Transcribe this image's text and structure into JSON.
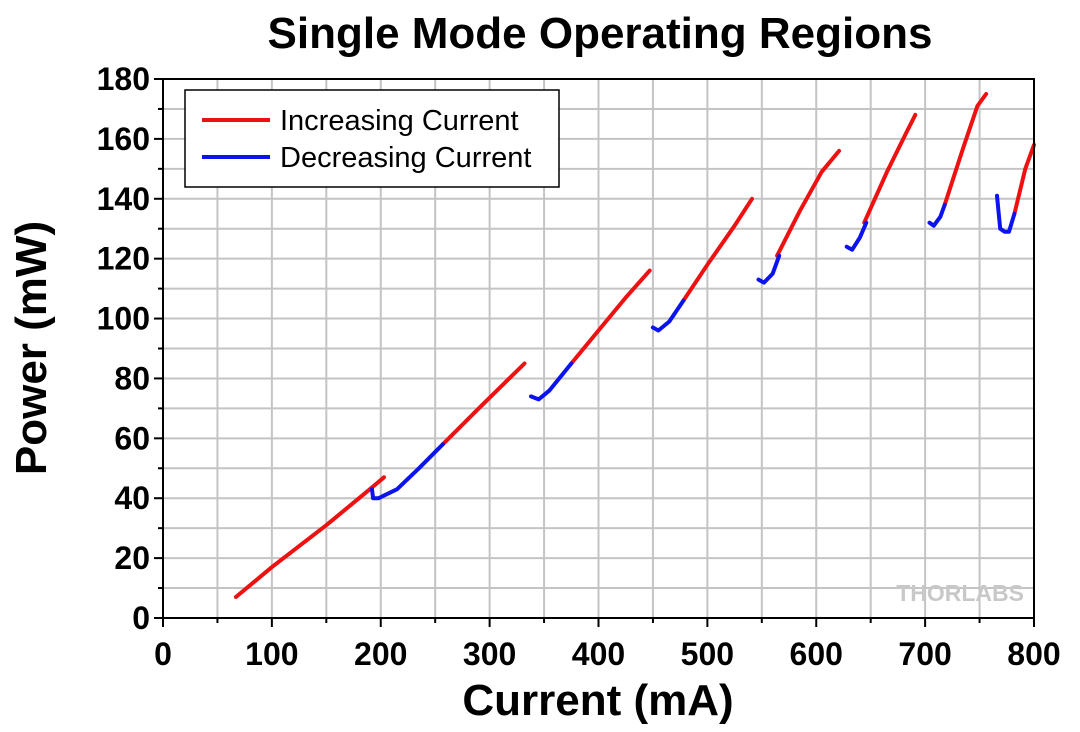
{
  "chart_data": {
    "type": "line",
    "title": "Single Mode Operating Regions",
    "xlabel": "Current (mA)",
    "ylabel": "Power (mW)",
    "xlim": [
      0,
      800
    ],
    "ylim": [
      0,
      180
    ],
    "x_ticks": [
      "0",
      "100",
      "200",
      "300",
      "400",
      "500",
      "600",
      "700",
      "800"
    ],
    "y_ticks": [
      "0",
      "20",
      "40",
      "60",
      "80",
      "100",
      "120",
      "140",
      "160",
      "180"
    ],
    "grid": true,
    "legend_position": "top-left",
    "watermark": "THORLABS",
    "series": [
      {
        "name": "Increasing Current",
        "color": "#ee1111",
        "segments": [
          [
            [
              67,
              7
            ],
            [
              100,
              17
            ],
            [
              150,
              31
            ],
            [
              190,
              43
            ],
            [
              203,
              47
            ]
          ],
          [
            [
              257,
              58
            ],
            [
              290,
              70
            ],
            [
              332,
              85
            ]
          ],
          [
            [
              375,
              85
            ],
            [
              400,
              96
            ],
            [
              425,
              107
            ],
            [
              447,
              116
            ]
          ],
          [
            [
              478,
              106
            ],
            [
              500,
              118
            ],
            [
              525,
              131
            ],
            [
              541,
              140
            ]
          ],
          [
            [
              564,
              121
            ],
            [
              585,
              136
            ],
            [
              605,
              149
            ],
            [
              621,
              156
            ]
          ],
          [
            [
              644,
              132
            ],
            [
              665,
              149
            ],
            [
              684,
              163
            ],
            [
              691,
              168
            ]
          ],
          [
            [
              718,
              138
            ],
            [
              735,
              157
            ],
            [
              748,
              171
            ],
            [
              756,
              175
            ]
          ],
          [
            [
              782,
              135
            ],
            [
              792,
              150
            ],
            [
              800,
              158
            ]
          ]
        ]
      },
      {
        "name": "Decreasing Current",
        "color": "#0b14ee",
        "segments": [
          [
            [
              192,
              43
            ],
            [
              193,
              40
            ],
            [
              198,
              40
            ],
            [
              215,
              43
            ],
            [
              235,
              50
            ],
            [
              257,
              58
            ]
          ],
          [
            [
              338,
              74
            ],
            [
              345,
              73
            ],
            [
              355,
              76
            ],
            [
              375,
              85
            ]
          ],
          [
            [
              450,
              97
            ],
            [
              455,
              96
            ],
            [
              465,
              99
            ],
            [
              478,
              106
            ]
          ],
          [
            [
              547,
              113
            ],
            [
              552,
              112
            ],
            [
              560,
              115
            ],
            [
              566,
              121
            ]
          ],
          [
            [
              628,
              124
            ],
            [
              633,
              123
            ],
            [
              640,
              127
            ],
            [
              646,
              132
            ]
          ],
          [
            [
              704,
              132
            ],
            [
              708,
              131
            ],
            [
              714,
              134
            ],
            [
              718,
              138
            ]
          ],
          [
            [
              766,
              141
            ],
            [
              769,
              130
            ],
            [
              773,
              129
            ],
            [
              777,
              129
            ],
            [
              782,
              135
            ]
          ]
        ]
      }
    ]
  }
}
